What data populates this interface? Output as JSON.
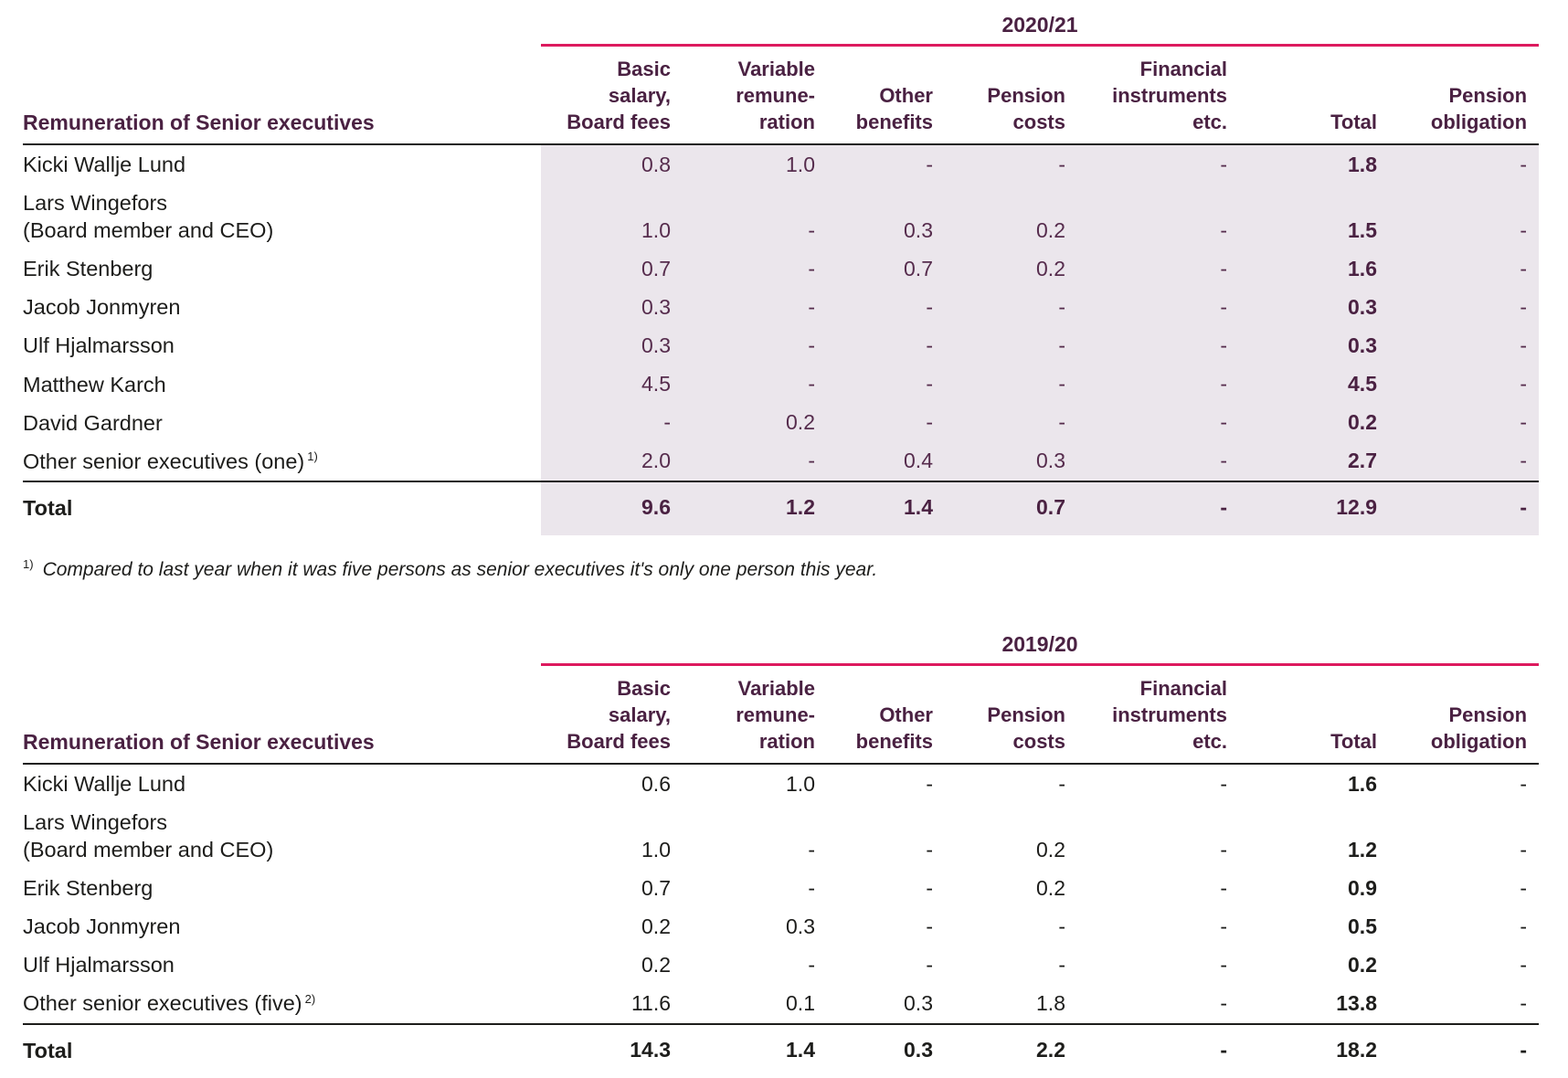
{
  "colors": {
    "accent": "#dd1a5e",
    "heading_plum": "#4a2142",
    "value_plum": "#562c4d",
    "row_shade": "#ebe6ec",
    "text": "#1d1d1b"
  },
  "tables": [
    {
      "year_label": "2020/21",
      "row_header": "Remuneration of Senior executives",
      "shaded": true,
      "values_style": "plum",
      "columns": [
        {
          "lines": [
            "Basic",
            "salary,",
            "Board fees"
          ]
        },
        {
          "lines": [
            "Variable",
            "remune-",
            "ration"
          ]
        },
        {
          "lines": [
            "Other",
            "benefits"
          ]
        },
        {
          "lines": [
            "Pension",
            "costs"
          ]
        },
        {
          "lines": [
            "Financial",
            "instruments",
            "etc."
          ]
        },
        {
          "lines": [
            "Total"
          ]
        },
        {
          "lines": [
            "Pension",
            "obligation"
          ]
        }
      ],
      "rows": [
        {
          "name": "Kicki Wallje Lund",
          "values": [
            "0.8",
            "1.0",
            "-",
            "-",
            "-",
            "1.8",
            "-"
          ]
        },
        {
          "name_lines": [
            "Lars Wingefors",
            "(Board member and CEO)"
          ],
          "values": [
            "1.0",
            "-",
            "0.3",
            "0.2",
            "-",
            "1.5",
            "-"
          ]
        },
        {
          "name": "Erik Stenberg",
          "values": [
            "0.7",
            "-",
            "0.7",
            "0.2",
            "-",
            "1.6",
            "-"
          ]
        },
        {
          "name": "Jacob Jonmyren",
          "values": [
            "0.3",
            "-",
            "-",
            "-",
            "-",
            "0.3",
            "-"
          ]
        },
        {
          "name": "Ulf Hjalmarsson",
          "values": [
            "0.3",
            "-",
            "-",
            "-",
            "-",
            "0.3",
            "-"
          ]
        },
        {
          "name": "Matthew Karch",
          "values": [
            "4.5",
            "-",
            "-",
            "-",
            "-",
            "4.5",
            "-"
          ]
        },
        {
          "name": "David Gardner",
          "values": [
            "-",
            "0.2",
            "-",
            "-",
            "-",
            "0.2",
            "-"
          ]
        },
        {
          "name": "Other senior executives (one)",
          "sup": "1)",
          "values": [
            "2.0",
            "-",
            "0.4",
            "0.3",
            "-",
            "2.7",
            "-"
          ]
        }
      ],
      "total": {
        "label": "Total",
        "values": [
          "9.6",
          "1.2",
          "1.4",
          "0.7",
          "-",
          "12.9",
          "-"
        ]
      },
      "footnote": {
        "sup": "1)",
        "text": "Compared to last year when it was five persons as senior executives it's only one person this year."
      }
    },
    {
      "year_label": "2019/20",
      "row_header": "Remuneration of Senior executives",
      "shaded": false,
      "values_style": "dark",
      "columns": [
        {
          "lines": [
            "Basic",
            "salary,",
            "Board fees"
          ]
        },
        {
          "lines": [
            "Variable",
            "remune-",
            "ration"
          ]
        },
        {
          "lines": [
            "Other",
            "benefits"
          ]
        },
        {
          "lines": [
            "Pension",
            "costs"
          ]
        },
        {
          "lines": [
            "Financial",
            "instruments",
            "etc."
          ]
        },
        {
          "lines": [
            "Total"
          ]
        },
        {
          "lines": [
            "Pension",
            "obligation"
          ]
        }
      ],
      "rows": [
        {
          "name": "Kicki Wallje Lund",
          "values": [
            "0.6",
            "1.0",
            "-",
            "-",
            "-",
            "1.6",
            "-"
          ]
        },
        {
          "name_lines": [
            "Lars Wingefors",
            "(Board member and CEO)"
          ],
          "values": [
            "1.0",
            "-",
            "-",
            "0.2",
            "-",
            "1.2",
            "-"
          ]
        },
        {
          "name": "Erik Stenberg",
          "values": [
            "0.7",
            "-",
            "-",
            "0.2",
            "-",
            "0.9",
            "-"
          ]
        },
        {
          "name": "Jacob Jonmyren",
          "values": [
            "0.2",
            "0.3",
            "-",
            "-",
            "-",
            "0.5",
            "-"
          ]
        },
        {
          "name": "Ulf Hjalmarsson",
          "values": [
            "0.2",
            "-",
            "-",
            "-",
            "-",
            "0.2",
            "-"
          ]
        },
        {
          "name": "Other senior executives (five)",
          "sup": "2)",
          "values": [
            "11.6",
            "0.1",
            "0.3",
            "1.8",
            "-",
            "13.8",
            "-"
          ]
        }
      ],
      "total": {
        "label": "Total",
        "values": [
          "14.3",
          "1.4",
          "0.3",
          "2.2",
          "-",
          "18.2",
          "-"
        ]
      }
    }
  ]
}
